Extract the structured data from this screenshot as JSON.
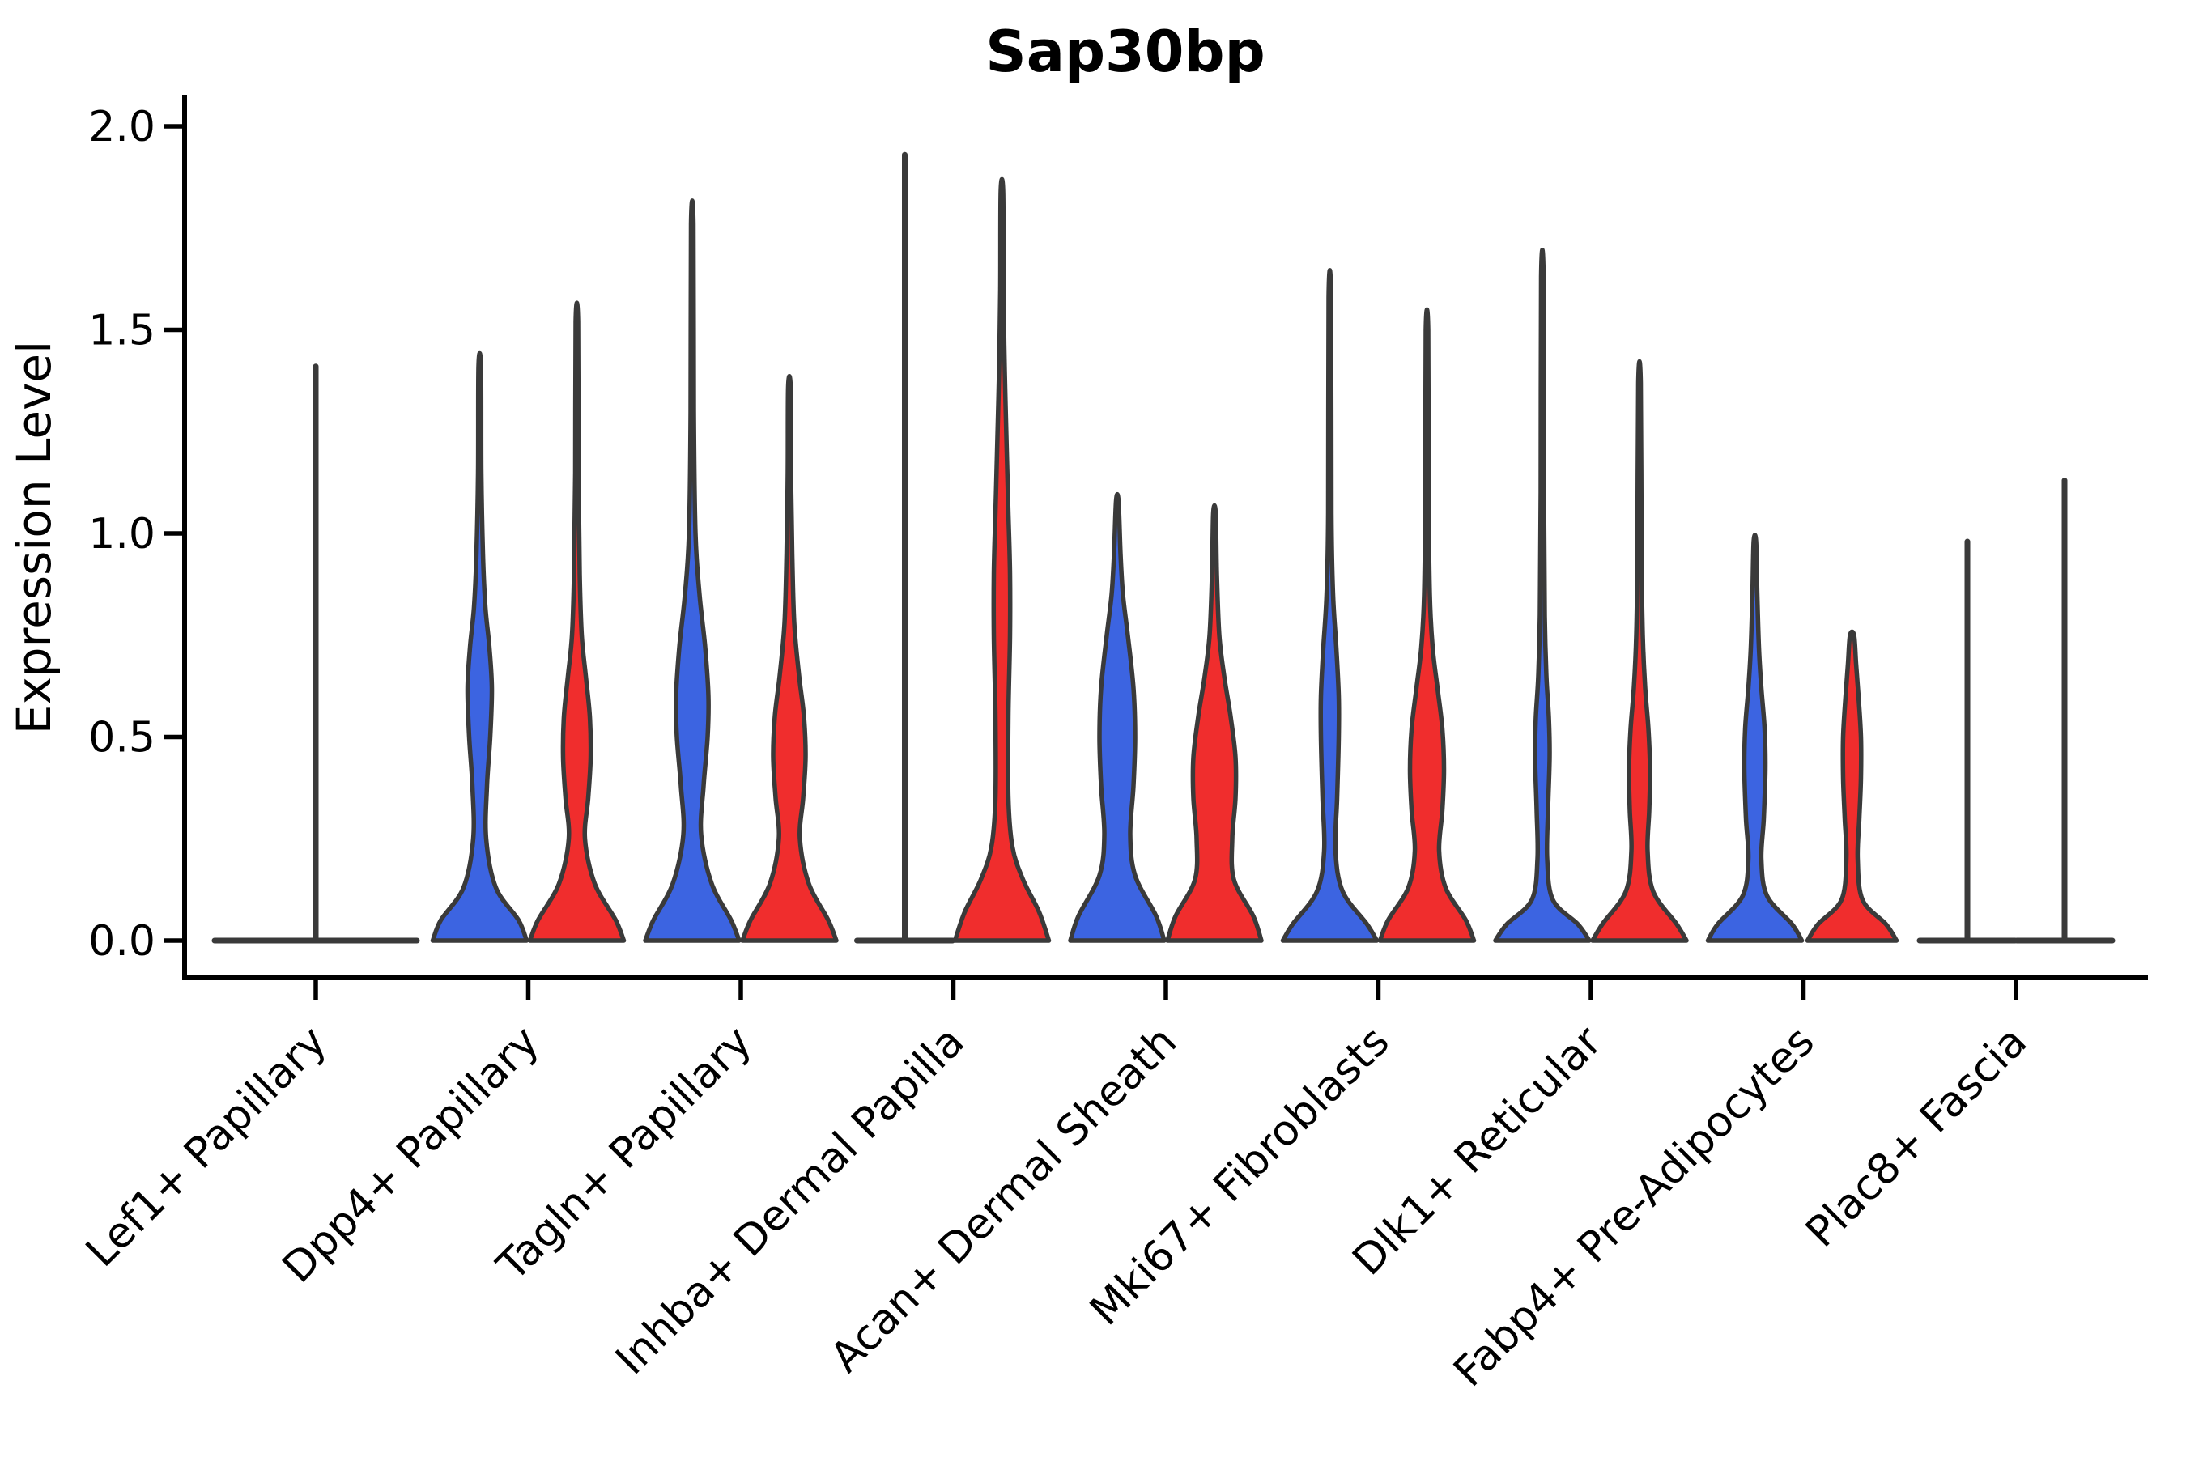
{
  "chart_data": {
    "type": "violin",
    "title": "Sap30bp",
    "ylabel": "Expression Level",
    "ylim": [
      0,
      2
    ],
    "yticks": [
      0.0,
      0.5,
      1.0,
      1.5,
      2.0
    ],
    "ytick_labels": [
      "0.0",
      "0.5",
      "1.0",
      "1.5",
      "2.0"
    ],
    "grid": false,
    "legend": "none",
    "categories": [
      "Lef1+ Papillary",
      "Dpp4+ Papillary",
      "Tagln+ Papillary",
      "Inhba+ Dermal Papilla",
      "Acan+ Dermal Sheath",
      "Mki67+ Fibroblasts",
      "Dlk1+ Reticular",
      "Fabp4+ Pre-Adipocytes",
      "Plac8+ Fascia"
    ],
    "colors": {
      "split_left_fill": "#3C64E1",
      "split_right_fill": "#F02D2D",
      "outline": "#3A3A3A",
      "axis": "#000000"
    },
    "violins": [
      {
        "category": 0,
        "side": "full",
        "fill": null,
        "collapsed": true,
        "max": 1.41,
        "spike": true,
        "line_halfwidth": 125,
        "profile": []
      },
      {
        "category": 1,
        "side": "left",
        "fill": "split_left_fill",
        "collapsed": false,
        "max": 1.41,
        "spike": false,
        "profile": [
          [
            0,
            58
          ],
          [
            0.05,
            48
          ],
          [
            0.13,
            20
          ],
          [
            0.25,
            8
          ],
          [
            0.38,
            9
          ],
          [
            0.5,
            13
          ],
          [
            0.62,
            15
          ],
          [
            0.72,
            12
          ],
          [
            0.82,
            7
          ],
          [
            0.95,
            4
          ],
          [
            1.15,
            2
          ],
          [
            1.41,
            1.5
          ]
        ]
      },
      {
        "category": 1,
        "side": "right",
        "fill": "split_right_fill",
        "collapsed": false,
        "max": 1.52,
        "spike": false,
        "profile": [
          [
            0,
            58
          ],
          [
            0.05,
            48
          ],
          [
            0.14,
            22
          ],
          [
            0.25,
            10
          ],
          [
            0.35,
            14
          ],
          [
            0.45,
            17
          ],
          [
            0.55,
            16
          ],
          [
            0.65,
            11
          ],
          [
            0.75,
            6
          ],
          [
            0.9,
            3.5
          ],
          [
            1.15,
            2
          ],
          [
            1.52,
            1.5
          ]
        ]
      },
      {
        "category": 2,
        "side": "left",
        "fill": "split_left_fill",
        "collapsed": false,
        "max": 1.76,
        "spike": false,
        "profile": [
          [
            0,
            58
          ],
          [
            0.05,
            48
          ],
          [
            0.14,
            24
          ],
          [
            0.26,
            11
          ],
          [
            0.38,
            14
          ],
          [
            0.5,
            19
          ],
          [
            0.6,
            20
          ],
          [
            0.72,
            16
          ],
          [
            0.85,
            9
          ],
          [
            1.0,
            4
          ],
          [
            1.3,
            2
          ],
          [
            1.76,
            1.5
          ]
        ]
      },
      {
        "category": 2,
        "side": "right",
        "fill": "split_right_fill",
        "collapsed": false,
        "max": 1.36,
        "spike": false,
        "profile": [
          [
            0,
            58
          ],
          [
            0.05,
            48
          ],
          [
            0.14,
            24
          ],
          [
            0.25,
            13
          ],
          [
            0.35,
            17
          ],
          [
            0.45,
            20
          ],
          [
            0.55,
            18
          ],
          [
            0.65,
            12
          ],
          [
            0.78,
            6
          ],
          [
            0.95,
            3.5
          ],
          [
            1.15,
            2
          ],
          [
            1.36,
            1.5
          ]
        ]
      },
      {
        "category": 3,
        "side": "left",
        "fill": null,
        "collapsed": true,
        "max": 1.93,
        "spike": true,
        "line_halfwidth": 59,
        "profile": []
      },
      {
        "category": 3,
        "side": "right",
        "fill": "split_right_fill",
        "collapsed": false,
        "max": 1.84,
        "spike": false,
        "profile": [
          [
            0,
            58
          ],
          [
            0.07,
            46
          ],
          [
            0.15,
            26
          ],
          [
            0.23,
            13
          ],
          [
            0.35,
            8
          ],
          [
            0.55,
            8
          ],
          [
            0.75,
            10
          ],
          [
            0.9,
            10
          ],
          [
            1.05,
            8
          ],
          [
            1.2,
            6
          ],
          [
            1.4,
            3.5
          ],
          [
            1.6,
            2
          ],
          [
            1.84,
            1.5
          ]
        ]
      },
      {
        "category": 4,
        "side": "left",
        "fill": "split_left_fill",
        "collapsed": false,
        "max": 1.08,
        "spike": false,
        "profile": [
          [
            0,
            58
          ],
          [
            0.06,
            48
          ],
          [
            0.16,
            22
          ],
          [
            0.26,
            16
          ],
          [
            0.38,
            20
          ],
          [
            0.5,
            22
          ],
          [
            0.62,
            20
          ],
          [
            0.75,
            13
          ],
          [
            0.85,
            7
          ],
          [
            0.95,
            4
          ],
          [
            1.08,
            1.5
          ]
        ]
      },
      {
        "category": 4,
        "side": "right",
        "fill": "split_right_fill",
        "collapsed": false,
        "max": 1.05,
        "spike": false,
        "profile": [
          [
            0,
            58
          ],
          [
            0.06,
            48
          ],
          [
            0.15,
            24
          ],
          [
            0.25,
            22
          ],
          [
            0.35,
            26
          ],
          [
            0.45,
            26
          ],
          [
            0.55,
            20
          ],
          [
            0.65,
            12
          ],
          [
            0.75,
            6
          ],
          [
            0.9,
            3
          ],
          [
            1.05,
            1.5
          ]
        ]
      },
      {
        "category": 5,
        "side": "left",
        "fill": "split_left_fill",
        "collapsed": false,
        "max": 1.58,
        "spike": false,
        "profile": [
          [
            0,
            58
          ],
          [
            0.04,
            46
          ],
          [
            0.12,
            16
          ],
          [
            0.22,
            7
          ],
          [
            0.35,
            9
          ],
          [
            0.5,
            11
          ],
          [
            0.6,
            11
          ],
          [
            0.72,
            8
          ],
          [
            0.85,
            4
          ],
          [
            1.05,
            2
          ],
          [
            1.58,
            1.5
          ]
        ]
      },
      {
        "category": 5,
        "side": "right",
        "fill": "split_right_fill",
        "collapsed": false,
        "max": 1.5,
        "spike": false,
        "profile": [
          [
            0,
            58
          ],
          [
            0.05,
            48
          ],
          [
            0.13,
            23
          ],
          [
            0.22,
            15
          ],
          [
            0.32,
            19
          ],
          [
            0.42,
            21
          ],
          [
            0.52,
            19
          ],
          [
            0.62,
            13
          ],
          [
            0.72,
            7
          ],
          [
            0.85,
            3.5
          ],
          [
            1.1,
            2
          ],
          [
            1.5,
            1.5
          ]
        ]
      },
      {
        "category": 6,
        "side": "left",
        "fill": "split_left_fill",
        "collapsed": false,
        "max": 1.63,
        "spike": false,
        "profile": [
          [
            0,
            58
          ],
          [
            0.04,
            44
          ],
          [
            0.1,
            13
          ],
          [
            0.2,
            6
          ],
          [
            0.32,
            7
          ],
          [
            0.45,
            9
          ],
          [
            0.55,
            8
          ],
          [
            0.65,
            5
          ],
          [
            0.8,
            3
          ],
          [
            1.1,
            2
          ],
          [
            1.63,
            1.5
          ]
        ]
      },
      {
        "category": 6,
        "side": "right",
        "fill": "split_right_fill",
        "collapsed": false,
        "max": 1.37,
        "spike": false,
        "profile": [
          [
            0,
            58
          ],
          [
            0.04,
            46
          ],
          [
            0.12,
            17
          ],
          [
            0.22,
            10
          ],
          [
            0.32,
            12
          ],
          [
            0.42,
            13
          ],
          [
            0.52,
            11
          ],
          [
            0.62,
            7
          ],
          [
            0.75,
            4
          ],
          [
            0.95,
            2.5
          ],
          [
            1.37,
            1.5
          ]
        ]
      },
      {
        "category": 7,
        "side": "left",
        "fill": "split_left_fill",
        "collapsed": false,
        "max": 0.98,
        "spike": false,
        "profile": [
          [
            0,
            58
          ],
          [
            0.04,
            46
          ],
          [
            0.11,
            15
          ],
          [
            0.2,
            8
          ],
          [
            0.3,
            11
          ],
          [
            0.42,
            13
          ],
          [
            0.52,
            12
          ],
          [
            0.62,
            8
          ],
          [
            0.72,
            5
          ],
          [
            0.85,
            3
          ],
          [
            0.98,
            1.5
          ]
        ]
      },
      {
        "category": 7,
        "side": "right",
        "fill": "split_right_fill",
        "collapsed": false,
        "max": 0.75,
        "spike": false,
        "profile": [
          [
            0,
            55
          ],
          [
            0.04,
            42
          ],
          [
            0.1,
            13
          ],
          [
            0.2,
            7
          ],
          [
            0.3,
            9
          ],
          [
            0.4,
            11
          ],
          [
            0.5,
            11
          ],
          [
            0.6,
            8
          ],
          [
            0.68,
            5
          ],
          [
            0.75,
            2.5
          ]
        ]
      },
      {
        "category": 8,
        "side": "left",
        "fill": null,
        "collapsed": true,
        "max": 0.98,
        "spike": true,
        "line_halfwidth": 59,
        "profile": []
      },
      {
        "category": 8,
        "side": "right",
        "fill": null,
        "collapsed": true,
        "max": 1.13,
        "spike": true,
        "line_halfwidth": 59,
        "profile": []
      }
    ]
  }
}
